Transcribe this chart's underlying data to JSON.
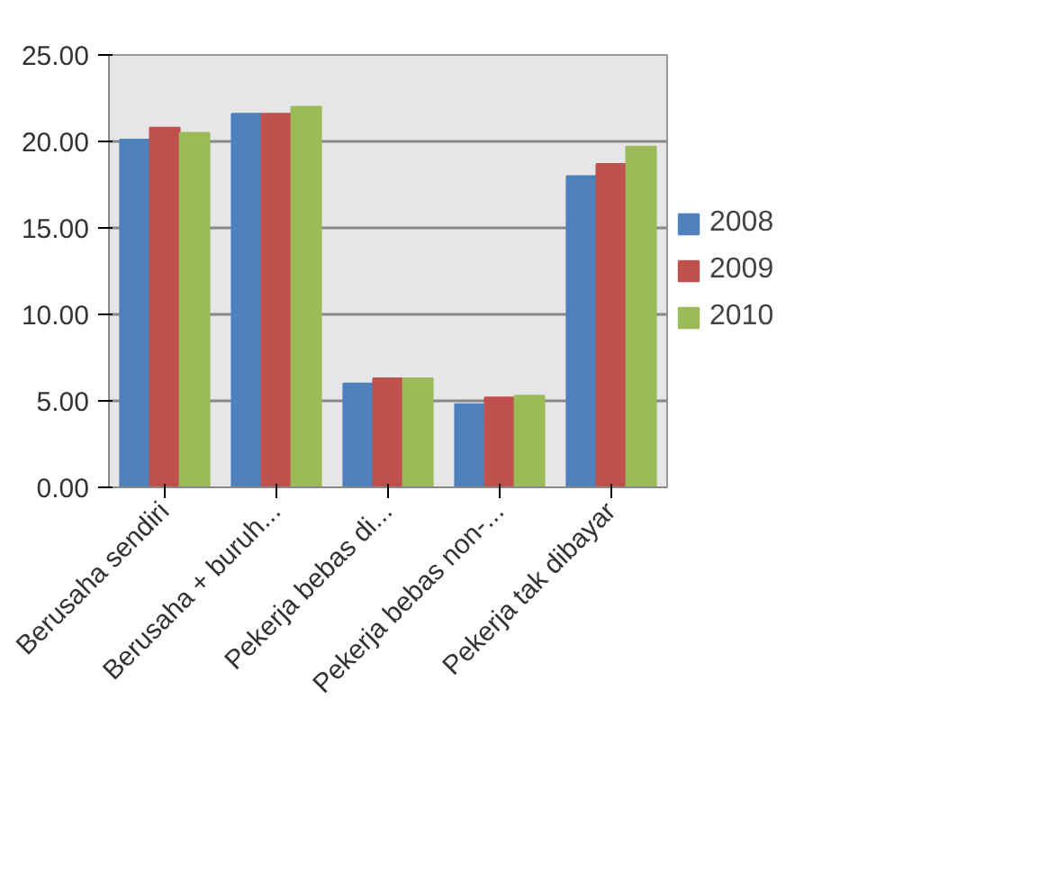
{
  "chart_data": {
    "type": "bar",
    "categories": [
      "Berusaha sendiri",
      "Berusaha + buruh...",
      "Pekerja bebas di...",
      "Pekerja bebas non-...",
      "Pekerja tak dibayar"
    ],
    "series": [
      {
        "name": "2008",
        "color": "#4f81bd",
        "values": [
          20.1,
          21.6,
          6.0,
          4.8,
          18.0
        ]
      },
      {
        "name": "2009",
        "color": "#c0504d",
        "values": [
          20.8,
          21.6,
          6.3,
          5.2,
          18.7
        ]
      },
      {
        "name": "2010",
        "color": "#9bbb59",
        "values": [
          20.5,
          22.0,
          6.3,
          5.3,
          19.7
        ]
      }
    ],
    "ylim": [
      0,
      25
    ],
    "yticks": [
      {
        "value": 0,
        "label": "0.00"
      },
      {
        "value": 5,
        "label": "5.00"
      },
      {
        "value": 10,
        "label": "10.00"
      },
      {
        "value": 15,
        "label": "15.00"
      },
      {
        "value": 20,
        "label": "20.00"
      },
      {
        "value": 25,
        "label": "25.00"
      }
    ],
    "grid": "y",
    "legend": "right"
  }
}
